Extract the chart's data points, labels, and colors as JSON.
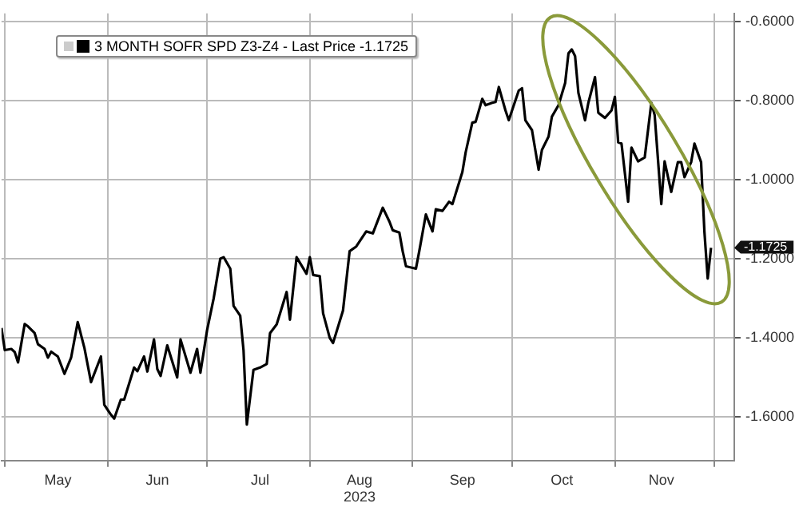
{
  "chart_data": {
    "type": "line",
    "legend": "top left",
    "grid": true,
    "marker": "none",
    "line_style": "solid",
    "xlim": [
      "2023-04-30",
      "2023-12-07"
    ],
    "xticks": [
      {
        "value": "2023-05-01",
        "label": null
      },
      {
        "value": "2023-05-17",
        "label": "May"
      },
      {
        "value": "2023-06-01",
        "label": null
      },
      {
        "value": "2023-06-16",
        "label": "Jun"
      },
      {
        "value": "2023-07-01",
        "label": null
      },
      {
        "value": "2023-07-17",
        "label": "Jul"
      },
      {
        "value": "2023-08-01",
        "label": null
      },
      {
        "value": "2023-08-16",
        "label": "Aug\n2023"
      },
      {
        "value": "2023-09-01",
        "label": null
      },
      {
        "value": "2023-09-16",
        "label": "Sep"
      },
      {
        "value": "2023-10-01",
        "label": null
      },
      {
        "value": "2023-10-16",
        "label": "Oct"
      },
      {
        "value": "2023-11-01",
        "label": null
      },
      {
        "value": "2023-11-15",
        "label": "Nov"
      },
      {
        "value": "2023-12-01",
        "label": null
      }
    ],
    "ylim": [
      -1.71,
      -0.58
    ],
    "yticks": [
      {
        "value": -1.6,
        "label": "-1.6000"
      },
      {
        "value": -1.4,
        "label": "-1.4000"
      },
      {
        "value": -1.2,
        "label": "-1.2000"
      },
      {
        "value": -1.0,
        "label": "-1.0000"
      },
      {
        "value": -0.8,
        "label": "-0.8000"
      },
      {
        "value": -0.6,
        "label": "-0.6000"
      }
    ],
    "annotations": [
      "-1.1725"
    ],
    "series": [
      {
        "name": "3 MONTH SOFR SPD Z3-Z4 - Last Price -1.1725",
        "color": "#000000",
        "x": [
          "2023-04-30",
          "2023-05-01",
          "2023-05-03",
          "2023-05-04",
          "2023-05-05",
          "2023-05-07",
          "2023-05-08",
          "2023-05-10",
          "2023-05-11",
          "2023-05-13",
          "2023-05-14",
          "2023-05-15",
          "2023-05-17",
          "2023-05-19",
          "2023-05-21",
          "2023-05-23",
          "2023-05-25",
          "2023-05-27",
          "2023-05-30",
          "2023-05-31",
          "2023-06-02",
          "2023-06-03",
          "2023-06-05",
          "2023-06-06",
          "2023-06-09",
          "2023-06-10",
          "2023-06-12",
          "2023-06-13",
          "2023-06-15",
          "2023-06-16",
          "2023-06-17",
          "2023-06-19",
          "2023-06-22",
          "2023-06-23",
          "2023-06-26",
          "2023-06-28",
          "2023-06-29",
          "2023-07-01",
          "2023-07-03",
          "2023-07-05",
          "2023-07-06",
          "2023-07-08",
          "2023-07-09",
          "2023-07-11",
          "2023-07-12",
          "2023-07-13",
          "2023-07-15",
          "2023-07-17",
          "2023-07-19",
          "2023-07-20",
          "2023-07-22",
          "2023-07-25",
          "2023-07-26",
          "2023-07-28",
          "2023-07-31",
          "2023-08-01",
          "2023-08-02",
          "2023-08-04",
          "2023-08-05",
          "2023-08-07",
          "2023-08-08",
          "2023-08-11",
          "2023-08-13",
          "2023-08-15",
          "2023-08-18",
          "2023-08-20",
          "2023-08-23",
          "2023-08-25",
          "2023-08-26",
          "2023-08-28",
          "2023-08-29",
          "2023-08-30",
          "2023-09-02",
          "2023-09-03",
          "2023-09-05",
          "2023-09-07",
          "2023-09-08",
          "2023-09-10",
          "2023-09-12",
          "2023-09-13",
          "2023-09-16",
          "2023-09-17",
          "2023-09-19",
          "2023-09-20",
          "2023-09-22",
          "2023-09-23",
          "2023-09-25",
          "2023-09-26",
          "2023-09-27",
          "2023-09-29",
          "2023-09-30",
          "2023-10-03",
          "2023-10-04",
          "2023-10-05",
          "2023-10-07",
          "2023-10-09",
          "2023-10-10",
          "2023-10-12",
          "2023-10-13",
          "2023-10-15",
          "2023-10-17",
          "2023-10-18",
          "2023-10-19",
          "2023-10-20",
          "2023-10-21",
          "2023-10-23",
          "2023-10-24",
          "2023-10-26",
          "2023-10-27",
          "2023-10-29",
          "2023-10-31",
          "2023-11-01",
          "2023-11-02",
          "2023-11-03",
          "2023-11-05",
          "2023-11-06",
          "2023-11-08",
          "2023-11-10",
          "2023-11-12",
          "2023-11-13",
          "2023-11-15",
          "2023-11-16",
          "2023-11-18",
          "2023-11-20",
          "2023-11-21",
          "2023-11-22",
          "2023-11-24",
          "2023-11-25",
          "2023-11-27",
          "2023-11-28",
          "2023-11-29",
          "2023-11-30"
        ],
        "values": [
          -1.375,
          -1.431,
          -1.428,
          -1.436,
          -1.462,
          -1.365,
          -1.371,
          -1.388,
          -1.416,
          -1.428,
          -1.45,
          -1.435,
          -1.447,
          -1.491,
          -1.45,
          -1.36,
          -1.425,
          -1.512,
          -1.447,
          -1.569,
          -1.594,
          -1.604,
          -1.556,
          -1.556,
          -1.475,
          -1.484,
          -1.447,
          -1.485,
          -1.404,
          -1.479,
          -1.496,
          -1.419,
          -1.5,
          -1.404,
          -1.488,
          -1.428,
          -1.488,
          -1.381,
          -1.3,
          -1.2,
          -1.196,
          -1.225,
          -1.319,
          -1.344,
          -1.431,
          -1.619,
          -1.481,
          -1.475,
          -1.466,
          -1.388,
          -1.366,
          -1.284,
          -1.354,
          -1.196,
          -1.238,
          -1.196,
          -1.241,
          -1.244,
          -1.338,
          -1.4,
          -1.413,
          -1.331,
          -1.181,
          -1.169,
          -1.131,
          -1.136,
          -1.071,
          -1.106,
          -1.128,
          -1.134,
          -1.181,
          -1.219,
          -1.225,
          -1.181,
          -1.088,
          -1.131,
          -1.075,
          -1.079,
          -1.056,
          -1.062,
          -0.981,
          -0.931,
          -0.856,
          -0.854,
          -0.796,
          -0.812,
          -0.806,
          -0.804,
          -0.766,
          -0.825,
          -0.85,
          -0.775,
          -0.769,
          -0.85,
          -0.875,
          -0.975,
          -0.925,
          -0.891,
          -0.841,
          -0.812,
          -0.756,
          -0.681,
          -0.671,
          -0.688,
          -0.781,
          -0.85,
          -0.806,
          -0.741,
          -0.831,
          -0.844,
          -0.825,
          -0.791,
          -0.906,
          -0.909,
          -1.056,
          -0.919,
          -0.954,
          -0.944,
          -0.806,
          -0.837,
          -1.062,
          -0.954,
          -1.031,
          -0.956,
          -0.956,
          -0.994,
          -0.956,
          -0.909,
          -0.956,
          -1.131,
          -1.25,
          -1.1725
        ]
      }
    ]
  }
}
